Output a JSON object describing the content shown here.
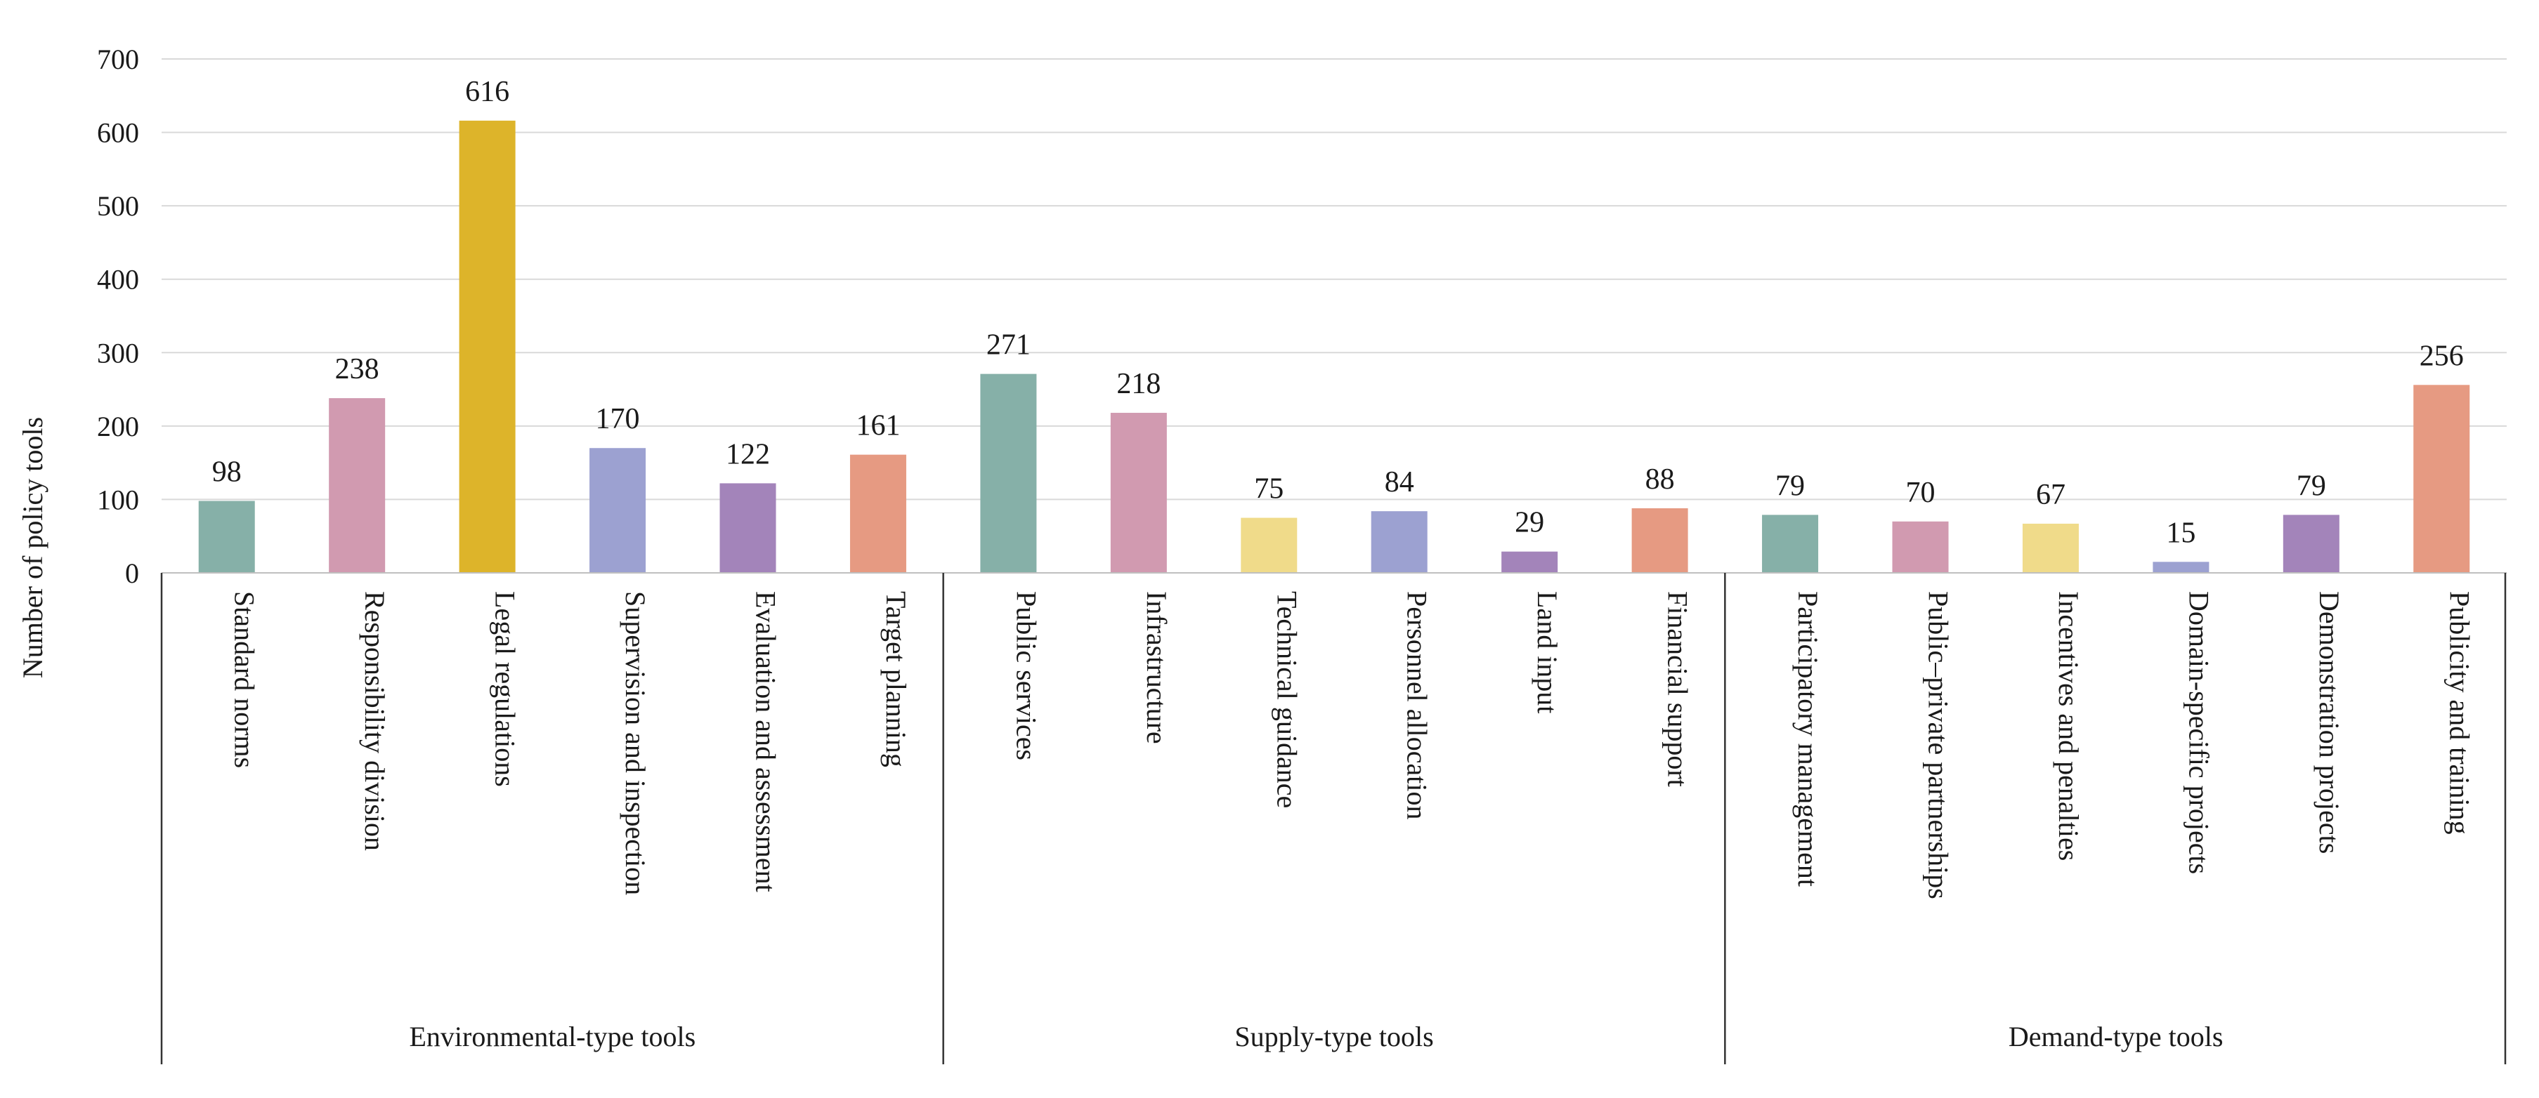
{
  "chart_data": {
    "type": "bar",
    "title": "",
    "xlabel": "",
    "ylabel": "Number of policy tools",
    "ylim": [
      0,
      700
    ],
    "yticks": [
      0,
      100,
      200,
      300,
      400,
      500,
      600,
      700
    ],
    "grid": true,
    "legend": "none",
    "categories": [
      "Standard norms",
      "Responsibility division",
      "Legal regulations",
      "Supervision and inspection",
      "Evaluation and assessment",
      "Target planning",
      "Public services",
      "Infrastructure",
      "Technical guidance",
      "Personnel allocation",
      "Land input",
      "Financial support",
      "Participatory management",
      "Public–private partnerships",
      "Incentives and penalties",
      "Domain-specific projects",
      "Demonstration projects",
      "Publicity and training"
    ],
    "values": [
      98,
      238,
      616,
      170,
      122,
      161,
      271,
      218,
      75,
      84,
      29,
      88,
      79,
      70,
      67,
      15,
      79,
      256
    ],
    "bar_colors": [
      "#86B0A8",
      "#D19AB0",
      "#DDB42A",
      "#9CA1D1",
      "#A384BA",
      "#E69A82",
      "#86B0A8",
      "#D19AB0",
      "#F0DB8A",
      "#9CA1D1",
      "#A384BA",
      "#E69A82",
      "#86B0A8",
      "#D19AB0",
      "#F0DB8A",
      "#9CA1D1",
      "#A384BA",
      "#E69A82"
    ],
    "groups": [
      {
        "name": "Environmental-type tools",
        "start": 0,
        "end": 5
      },
      {
        "name": "Supply-type tools",
        "start": 6,
        "end": 11
      },
      {
        "name": "Demand-type tools",
        "start": 12,
        "end": 17
      }
    ]
  }
}
